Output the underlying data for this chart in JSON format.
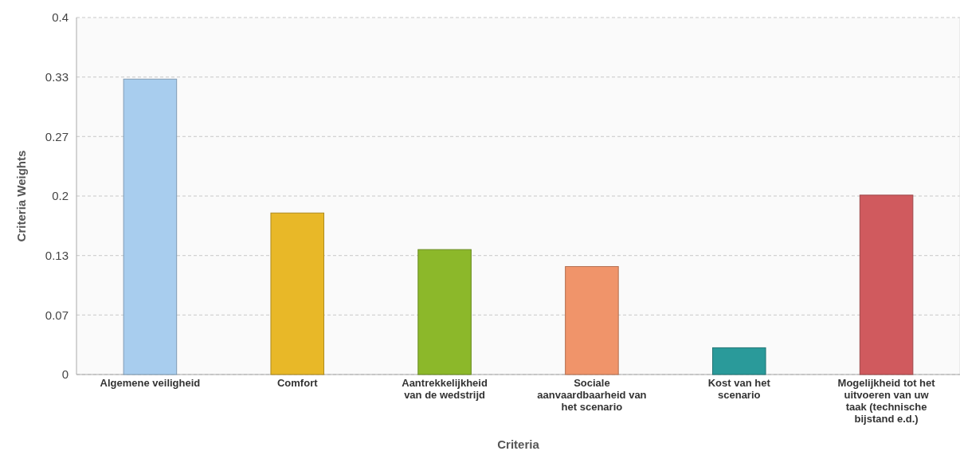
{
  "chart_data": {
    "type": "bar",
    "xlabel": "Criteria",
    "ylabel": "Criteria Weights",
    "categories": [
      "Algemene veiligheid",
      "Comfort",
      "Aantrekkelijkheid van de wedstrijd",
      "Sociale aanvaardbaarheid van het scenario",
      "Kost van het scenario",
      "Mogelijkheid tot het uitvoeren van uw taak (technische bijstand e.d.)"
    ],
    "values": [
      0.331,
      0.181,
      0.14,
      0.121,
      0.03,
      0.201
    ],
    "colors": [
      "#a8cdee",
      "#e8b828",
      "#8cb82a",
      "#f0946a",
      "#2a9a9a",
      "#d05a5e"
    ],
    "ylim": [
      0,
      0.4
    ],
    "yticks": [
      0,
      {
        "value": 0.0667,
        "label": "0.07"
      },
      {
        "value": 0.1333,
        "label": "0.13"
      },
      0.2,
      {
        "value": 0.2667,
        "label": "0.27"
      },
      {
        "value": 0.3333,
        "label": "0.33"
      },
      0.4
    ],
    "grid": "y"
  }
}
